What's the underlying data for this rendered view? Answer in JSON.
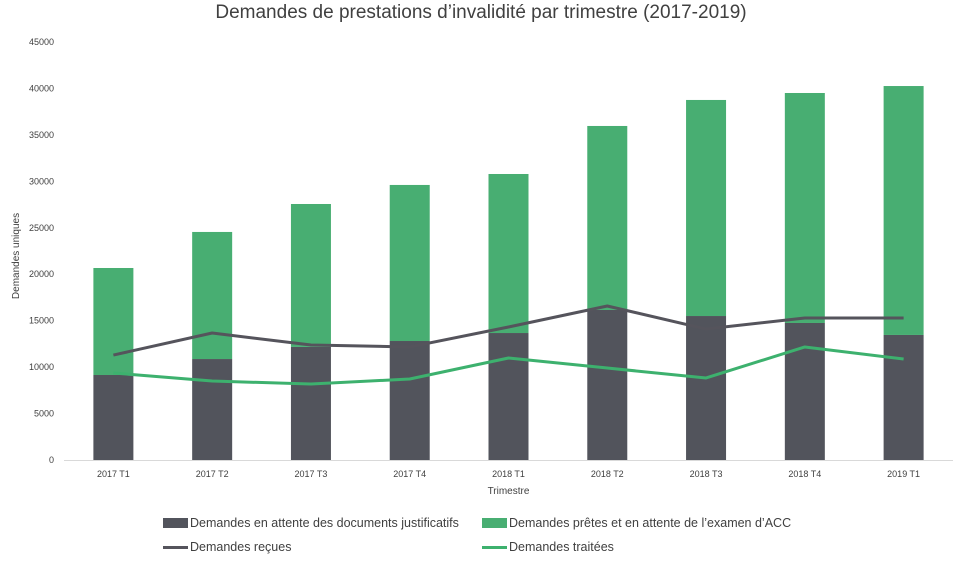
{
  "chart_data": {
    "type": "bar",
    "subtype": "stacked-bar-with-lines",
    "title": "Demandes de prestations d’invalidité par trimestre (2017-2019)",
    "xlabel": "Trimestre",
    "ylabel": "Demandes uniques",
    "ylim": [
      0,
      45000
    ],
    "yticks": [
      0,
      5000,
      10000,
      15000,
      20000,
      25000,
      30000,
      35000,
      40000,
      45000
    ],
    "ytick_labels": [
      "0",
      "5000",
      "10000",
      "15000",
      "20000",
      "25000",
      "30000",
      "35000",
      "40000",
      "45000"
    ],
    "grid": false,
    "legend_position": "bottom",
    "categories": [
      "2017 T1",
      "2017 T2",
      "2017 T3",
      "2017 T4",
      "2018 T1",
      "2018 T2",
      "2018 T3",
      "2018 T4",
      "2019 T1"
    ],
    "series": [
      {
        "name": "Demandes en attente des documents justificatifs",
        "type": "bar",
        "stack": "total",
        "color": "#52545c",
        "values": [
          9150,
          10870,
          12170,
          12810,
          13670,
          16150,
          15500,
          14750,
          13460
        ]
      },
      {
        "name": "Demandes prêtes et en attente de l’examen d’ACC",
        "type": "bar",
        "stack": "total",
        "color": "#48ae72",
        "values": [
          11520,
          13680,
          15390,
          16800,
          17120,
          19810,
          23260,
          24760,
          26800
        ]
      },
      {
        "name": "Demandes reçues",
        "type": "line",
        "color": "#55545c",
        "values": [
          11300,
          13670,
          12380,
          12170,
          14320,
          16580,
          14100,
          15290,
          15290
        ]
      },
      {
        "name": "Demandes traitées",
        "type": "line",
        "color": "#3db16e",
        "values": [
          9370,
          8500,
          8180,
          8720,
          10980,
          9900,
          8830,
          12170,
          10870
        ]
      }
    ]
  }
}
